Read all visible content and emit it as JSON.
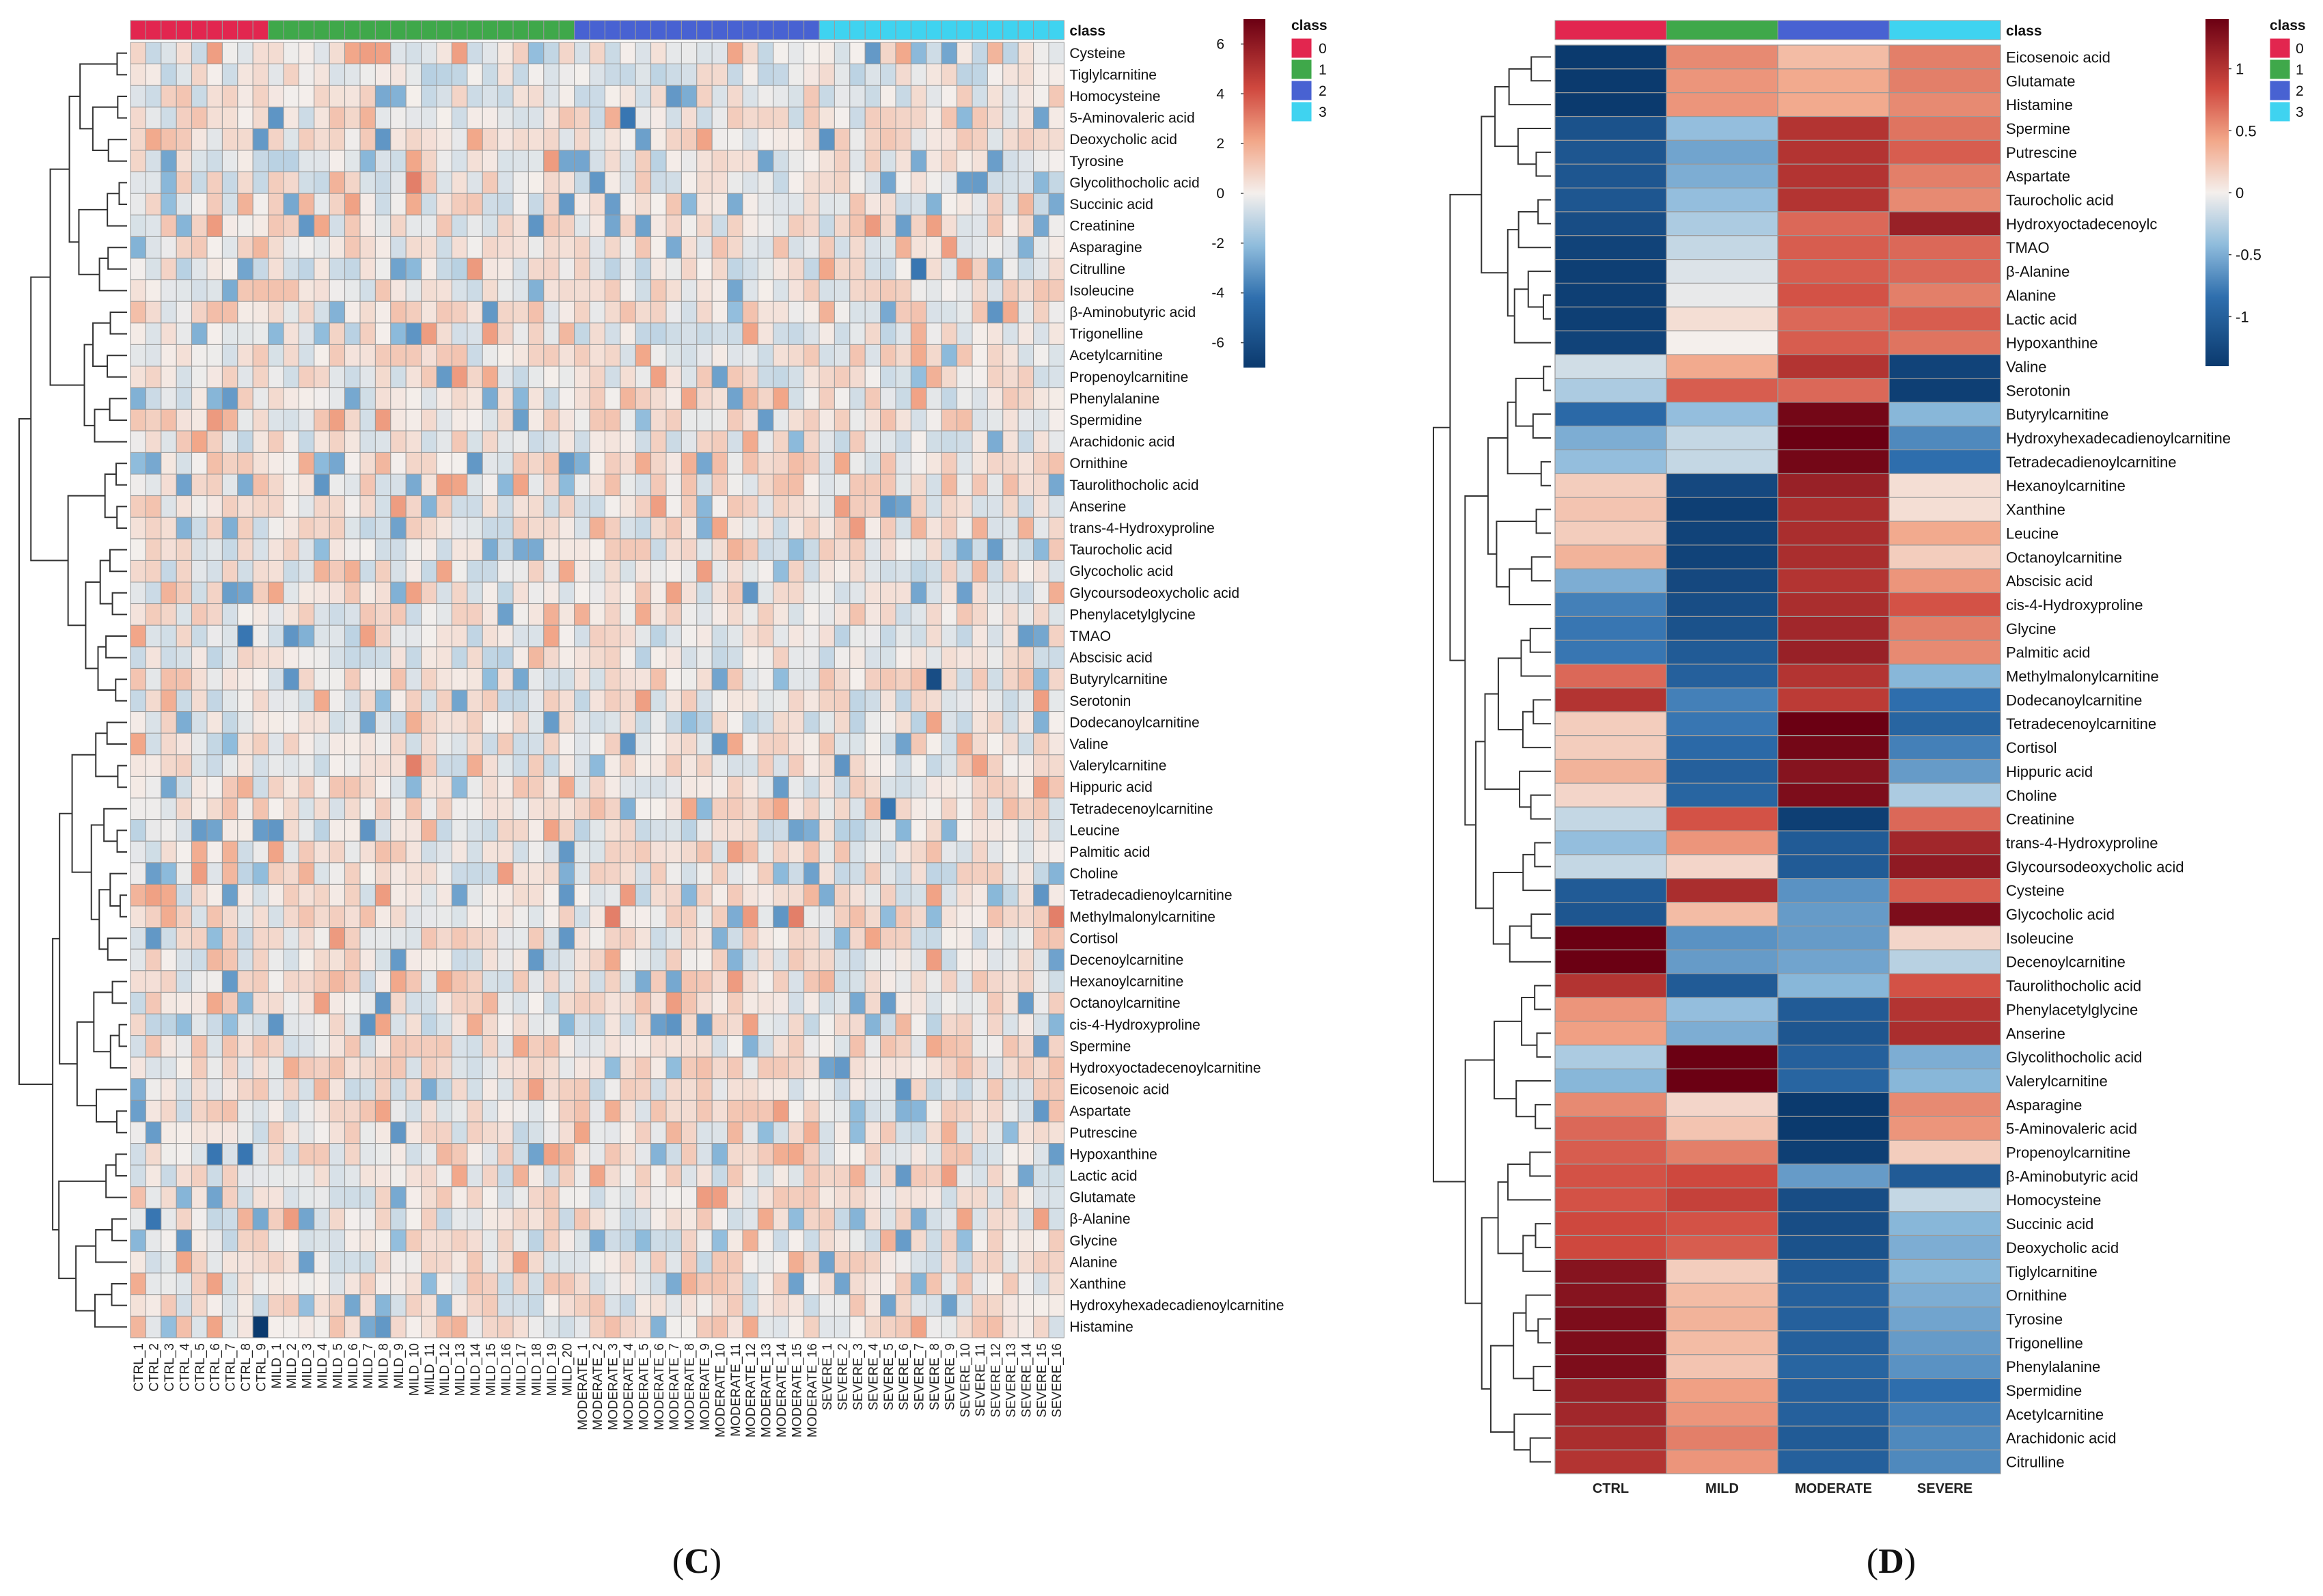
{
  "colors": {
    "class0": "#e2264f",
    "class1": "#3fa84a",
    "class2": "#4862d2",
    "class3": "#3fd3f0",
    "low": "#0b3a6e",
    "mid": "#f4efec",
    "high": "#6b0013",
    "grid": "#9a9a9a"
  },
  "chart_data": [
    {
      "type": "heatmap",
      "panel": "C",
      "caption": "C",
      "class_header": "class",
      "legend": {
        "title": "class",
        "entries": [
          "0",
          "1",
          "2",
          "3"
        ],
        "colorbar_ticks": [
          6,
          4,
          2,
          0,
          -2,
          -4,
          -6
        ],
        "range": [
          -7,
          7
        ]
      },
      "columns": [
        "CTRL_1",
        "CTRL_2",
        "CTRL_3",
        "CTRL_4",
        "CTRL_5",
        "CTRL_6",
        "CTRL_7",
        "CTRL_8",
        "CTRL_9",
        "MILD_1",
        "MILD_2",
        "MILD_3",
        "MILD_4",
        "MILD_5",
        "MILD_6",
        "MILD_7",
        "MILD_8",
        "MILD_9",
        "MILD_10",
        "MILD_11",
        "MILD_12",
        "MILD_13",
        "MILD_14",
        "MILD_15",
        "MILD_16",
        "MILD_17",
        "MILD_18",
        "MILD_19",
        "MILD_20",
        "MODERATE_1",
        "MODERATE_2",
        "MODERATE_3",
        "MODERATE_4",
        "MODERATE_5",
        "MODERATE_6",
        "MODERATE_7",
        "MODERATE_8",
        "MODERATE_9",
        "MODERATE_10",
        "MODERATE_11",
        "MODERATE_12",
        "MODERATE_13",
        "MODERATE_14",
        "MODERATE_15",
        "MODERATE_16",
        "SEVERE_1",
        "SEVERE_2",
        "SEVERE_3",
        "SEVERE_4",
        "SEVERE_5",
        "SEVERE_6",
        "SEVERE_7",
        "SEVERE_8",
        "SEVERE_9",
        "SEVERE_10",
        "SEVERE_11",
        "SEVERE_12",
        "SEVERE_13",
        "SEVERE_14",
        "SEVERE_15",
        "SEVERE_16"
      ],
      "column_classes": [
        0,
        0,
        0,
        0,
        0,
        0,
        0,
        0,
        0,
        1,
        1,
        1,
        1,
        1,
        1,
        1,
        1,
        1,
        1,
        1,
        1,
        1,
        1,
        1,
        1,
        1,
        1,
        1,
        1,
        2,
        2,
        2,
        2,
        2,
        2,
        2,
        2,
        2,
        2,
        2,
        2,
        2,
        2,
        2,
        2,
        3,
        3,
        3,
        3,
        3,
        3,
        3,
        3,
        3,
        3,
        3,
        3,
        3,
        3,
        3,
        3
      ],
      "rows": [
        "Cysteine",
        "Tiglylcarnitine",
        "Homocysteine",
        "5-Aminovaleric acid",
        "Deoxycholic acid",
        "Tyrosine",
        "Glycolithocholic acid",
        "Succinic acid",
        "Creatinine",
        "Asparagine",
        "Citrulline",
        "Isoleucine",
        "β-Aminobutyric acid",
        "Trigonelline",
        "Acetylcarnitine",
        "Propenoylcarnitine",
        "Phenylalanine",
        "Spermidine",
        "Arachidonic acid",
        "Ornithine",
        "Taurolithocholic acid",
        "Anserine",
        "trans-4-Hydroxyproline",
        "Taurocholic acid",
        "Glycocholic acid",
        "Glycoursodeoxycholic acid",
        "Phenylacetylglycine",
        "TMAO",
        "Abscisic acid",
        "Butyrylcarnitine",
        "Serotonin",
        "Dodecanoylcarnitine",
        "Valine",
        "Valerylcarnitine",
        "Hippuric acid",
        "Tetradecenoylcarnitine",
        "Leucine",
        "Palmitic acid",
        "Choline",
        "Tetradecadienoylcarnitine",
        "Methylmalonylcarnitine",
        "Cortisol",
        "Decenoylcarnitine",
        "Hexanoylcarnitine",
        "Octanoylcarnitine",
        "cis-4-Hydroxyproline",
        "Spermine",
        "Hydroxyoctadecenoylcarnitine",
        "Eicosenoic acid",
        "Aspartate",
        "Putrescine",
        "Hypoxanthine",
        "Lactic acid",
        "Glutamate",
        "β-Alanine",
        "Glycine",
        "Alanine",
        "Xanthine",
        "Hydroxyhexadecadienoylcarnitine",
        "Histamine"
      ],
      "note": "Per-sample z-score values estimated from color: mostly within -2..2; notable outliers listed",
      "outliers": [
        {
          "row": "Histamine",
          "col": "CTRL_9",
          "value": -7
        },
        {
          "row": "Butyrylcarnitine",
          "col": "SEVERE_8",
          "value": -6
        },
        {
          "row": "Tetradecenoylcarnitine",
          "col": "SEVERE_5",
          "value": -4
        },
        {
          "row": "β-Alanine",
          "col": "CTRL_2",
          "value": -4
        },
        {
          "row": "Hypoxanthine",
          "col": "CTRL_6",
          "value": -4
        },
        {
          "row": "Hypoxanthine",
          "col": "CTRL_8",
          "value": -4
        },
        {
          "row": "TMAO",
          "col": "CTRL_8",
          "value": -4
        },
        {
          "row": "5-Aminovaleric acid",
          "col": "MODERATE_4",
          "value": -4
        },
        {
          "row": "Citrulline",
          "col": "SEVERE_7",
          "value": -4
        },
        {
          "row": "Glycolithocholic acid",
          "col": "MILD_10",
          "value": 3
        },
        {
          "row": "Valerylcarnitine",
          "col": "MILD_10",
          "value": 3
        },
        {
          "row": "Methylmalonylcarnitine",
          "col": "MODERATE_3",
          "value": 3
        },
        {
          "row": "Methylmalonylcarnitine",
          "col": "MODERATE_15",
          "value": 3
        },
        {
          "row": "Methylmalonylcarnitine",
          "col": "SEVERE_16",
          "value": 3
        }
      ]
    },
    {
      "type": "heatmap",
      "panel": "D",
      "caption": "D",
      "class_header": "class",
      "legend": {
        "title": "class",
        "entries": [
          "0",
          "1",
          "2",
          "3"
        ],
        "colorbar_ticks": [
          "1",
          "0.5",
          "0",
          "-0.5",
          "-1"
        ],
        "range": [
          -1.4,
          1.4
        ]
      },
      "columns": [
        "CTRL",
        "MILD",
        "MODERATE",
        "SEVERE"
      ],
      "column_classes": [
        0,
        1,
        2,
        3
      ],
      "rows": [
        "Eicosenoic acid",
        "Glutamate",
        "Histamine",
        "Spermine",
        "Putrescine",
        "Aspartate",
        "Taurocholic acid",
        "Hydroxyoctadecenoylc",
        "TMAO",
        "β-Alanine",
        "Alanine",
        "Lactic acid",
        "Hypoxanthine",
        "Valine",
        "Serotonin",
        "Butyrylcarnitine",
        "Hydroxyhexadecadienoylcarnitine",
        "Tetradecadienoylcarnitine",
        "Hexanoylcarnitine",
        "Xanthine",
        "Leucine",
        "Octanoylcarnitine",
        "Abscisic acid",
        "cis-4-Hydroxyproline",
        "Glycine",
        "Palmitic acid",
        "Methylmalonylcarnitine",
        "Dodecanoylcarnitine",
        "Tetradecenoylcarnitine",
        "Cortisol",
        "Hippuric acid",
        "Choline",
        "Creatinine",
        "trans-4-Hydroxyproline",
        "Glycoursodeoxycholic acid",
        "Cysteine",
        "Glycocholic acid",
        "Isoleucine",
        "Decenoylcarnitine",
        "Taurolithocholic acid",
        "Phenylacetylglycine",
        "Anserine",
        "Glycolithocholic acid",
        "Valerylcarnitine",
        "Asparagine",
        "5-Aminovaleric acid",
        "Propenoylcarnitine",
        "β-Aminobutyric acid",
        "Homocysteine",
        "Succinic acid",
        "Deoxycholic acid",
        "Tiglylcarnitine",
        "Ornithine",
        "Tyrosine",
        "Trigonelline",
        "Phenylalanine",
        "Spermidine",
        "Acetylcarnitine",
        "Arachidonic acid",
        "Citrulline"
      ],
      "values": [
        [
          -1.4,
          0.55,
          0.3,
          0.6
        ],
        [
          -1.4,
          0.5,
          0.4,
          0.6
        ],
        [
          -1.4,
          0.5,
          0.4,
          0.55
        ],
        [
          -1.15,
          -0.4,
          1.0,
          0.65
        ],
        [
          -1.1,
          -0.55,
          1.0,
          0.75
        ],
        [
          -1.1,
          -0.5,
          1.0,
          0.6
        ],
        [
          -1.1,
          -0.4,
          1.0,
          0.55
        ],
        [
          -1.2,
          -0.3,
          0.7,
          1.15
        ],
        [
          -1.3,
          -0.2,
          0.75,
          0.7
        ],
        [
          -1.35,
          -0.1,
          0.75,
          0.7
        ],
        [
          -1.35,
          -0.05,
          0.8,
          0.6
        ],
        [
          -1.35,
          0.1,
          0.7,
          0.75
        ],
        [
          -1.3,
          0.0,
          0.75,
          0.65
        ],
        [
          -0.15,
          0.4,
          1.0,
          -1.3
        ],
        [
          -0.3,
          0.75,
          0.7,
          -1.35
        ],
        [
          -0.9,
          -0.4,
          1.35,
          -0.45
        ],
        [
          -0.5,
          -0.2,
          1.4,
          -0.7
        ],
        [
          -0.4,
          -0.2,
          1.35,
          -0.85
        ],
        [
          0.2,
          -1.25,
          1.15,
          0.1
        ],
        [
          0.25,
          -1.35,
          1.05,
          0.1
        ],
        [
          0.2,
          -1.3,
          1.05,
          0.4
        ],
        [
          0.35,
          -1.3,
          1.05,
          0.2
        ],
        [
          -0.5,
          -1.25,
          1.0,
          0.5
        ],
        [
          -0.75,
          -1.2,
          1.05,
          0.8
        ],
        [
          -0.8,
          -1.15,
          1.1,
          0.6
        ],
        [
          -0.8,
          -1.05,
          1.15,
          0.55
        ],
        [
          0.7,
          -1.0,
          1.0,
          -0.45
        ],
        [
          1.0,
          -0.75,
          0.95,
          -0.85
        ],
        [
          0.2,
          -0.8,
          1.4,
          -0.95
        ],
        [
          0.2,
          -0.9,
          1.35,
          -0.75
        ],
        [
          0.35,
          -1.0,
          1.25,
          -0.6
        ],
        [
          0.15,
          -0.95,
          1.3,
          -0.3
        ],
        [
          -0.2,
          0.8,
          -1.35,
          0.7
        ],
        [
          -0.4,
          0.5,
          -1.05,
          1.1
        ],
        [
          -0.2,
          0.15,
          -1.05,
          1.2
        ],
        [
          -1.05,
          1.05,
          -0.65,
          0.75
        ],
        [
          -1.1,
          0.3,
          -0.6,
          1.3
        ],
        [
          1.4,
          -0.65,
          -0.6,
          0.15
        ],
        [
          1.45,
          -0.6,
          -0.55,
          -0.25
        ],
        [
          1.0,
          -1.05,
          -0.45,
          0.8
        ],
        [
          0.5,
          -0.4,
          -1.05,
          1.0
        ],
        [
          0.45,
          -0.5,
          -1.1,
          1.05
        ],
        [
          -0.3,
          1.45,
          -1.0,
          -0.5
        ],
        [
          -0.45,
          1.4,
          -0.95,
          -0.45
        ],
        [
          0.55,
          0.15,
          -1.45,
          0.55
        ],
        [
          0.7,
          0.25,
          -1.4,
          0.5
        ],
        [
          0.75,
          0.6,
          -1.35,
          0.2
        ],
        [
          0.8,
          0.85,
          -0.6,
          -1.05
        ],
        [
          0.8,
          0.9,
          -1.2,
          -0.2
        ],
        [
          0.85,
          0.8,
          -1.2,
          -0.45
        ],
        [
          0.85,
          0.75,
          -1.15,
          -0.5
        ],
        [
          1.25,
          0.2,
          -1.05,
          -0.45
        ],
        [
          1.25,
          0.3,
          -1.0,
          -0.5
        ],
        [
          1.3,
          0.35,
          -1.0,
          -0.55
        ],
        [
          1.3,
          0.3,
          -1.0,
          -0.6
        ],
        [
          1.3,
          0.25,
          -0.95,
          -0.65
        ],
        [
          1.15,
          0.45,
          -1.0,
          -0.85
        ],
        [
          1.1,
          0.5,
          -1.0,
          -0.75
        ],
        [
          1.05,
          0.6,
          -1.05,
          -0.7
        ],
        [
          1.0,
          0.5,
          -1.0,
          -0.7
        ]
      ]
    }
  ]
}
